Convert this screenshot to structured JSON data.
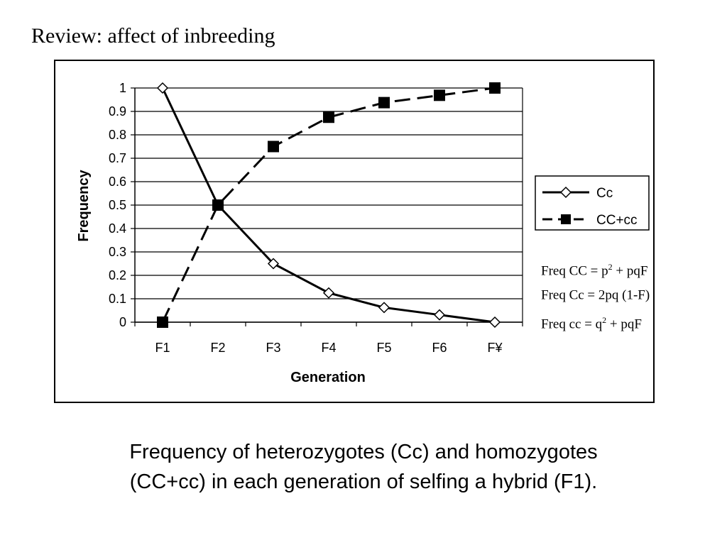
{
  "slide": {
    "title": "Review:  affect of inbreeding",
    "caption_line1": "Frequency of heterozygotes (Cc) and homozygotes",
    "caption_line2": "(CC+cc) in each generation of selfing a hybrid (F1)."
  },
  "formulas": [
    {
      "prefix": "Freq CC =  p",
      "sup": "2",
      "suffix": " + pqF"
    },
    {
      "prefix": "Freq Cc  = 2pq (1-F)",
      "sup": "",
      "suffix": ""
    },
    {
      "prefix": "Freq cc    = q",
      "sup": "2",
      "suffix": " + pqF"
    }
  ],
  "chart_data": {
    "type": "line",
    "categories": [
      "F1",
      "F2",
      "F3",
      "F4",
      "F5",
      "F6",
      "F¥"
    ],
    "series": [
      {
        "name": "Cc",
        "values": [
          1,
          0.5,
          0.25,
          0.125,
          0.0625,
          0.03125,
          0
        ],
        "line_style": "solid",
        "marker": "open-diamond"
      },
      {
        "name": "CC+cc",
        "values": [
          0,
          0.5,
          0.75,
          0.875,
          0.9375,
          0.96875,
          1
        ],
        "line_style": "dashed",
        "marker": "filled-square"
      }
    ],
    "xlabel": "Generation",
    "ylabel": "Frequency",
    "ylim": [
      0,
      1
    ],
    "yticks": [
      "0",
      "0.1",
      "0.2",
      "0.3",
      "0.4",
      "0.5",
      "0.6",
      "0.7",
      "0.8",
      "0.9",
      "1"
    ],
    "grid": true,
    "legend": "right"
  }
}
